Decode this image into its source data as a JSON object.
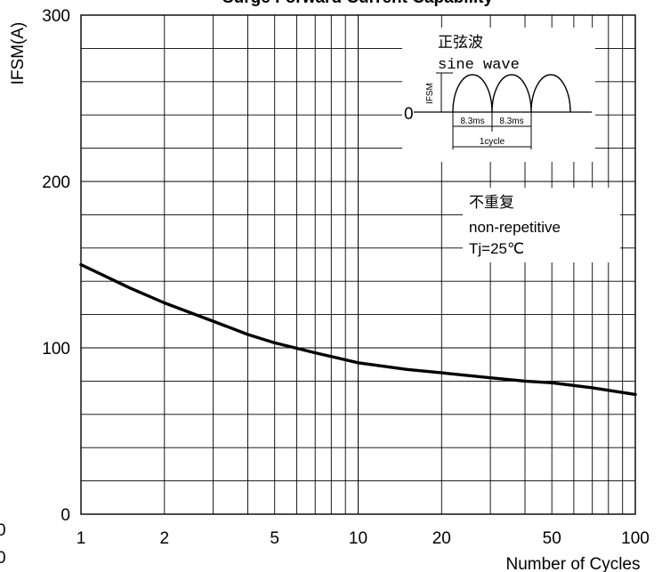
{
  "chart_data": {
    "type": "line",
    "title": "Surge Forward Current Capability",
    "ylabel": "IFSM(A)",
    "xlabel": "Number of Cycles",
    "x_scale": "log",
    "xlim": [
      1,
      100
    ],
    "ylim": [
      0,
      300
    ],
    "x_ticks": [
      "1",
      "2",
      "5",
      "10",
      "20",
      "50",
      "100"
    ],
    "y_ticks": [
      "0",
      "100",
      "200",
      "300"
    ],
    "grid": true,
    "series": [
      {
        "x": [
          1,
          1.5,
          2,
          3,
          4,
          5,
          7,
          10,
          15,
          20,
          30,
          40,
          50,
          70,
          100
        ],
        "y": [
          150,
          136,
          127,
          116,
          108,
          103,
          97,
          91,
          87,
          85,
          82,
          80,
          79,
          76,
          72
        ]
      }
    ],
    "annotations": {
      "inset_cn": "正弦波",
      "inset_en": "sine wave",
      "inset_y_label": "IFSM",
      "inset_zero": "0",
      "inset_dt1": "8.3ms",
      "inset_dt2": "8.3ms",
      "inset_cycle": "1cycle",
      "note_cn": "不重复",
      "note_en": "non-repetitive",
      "note_tj": "Tj=25℃"
    },
    "edge_fragments": [
      "0",
      "0"
    ]
  }
}
